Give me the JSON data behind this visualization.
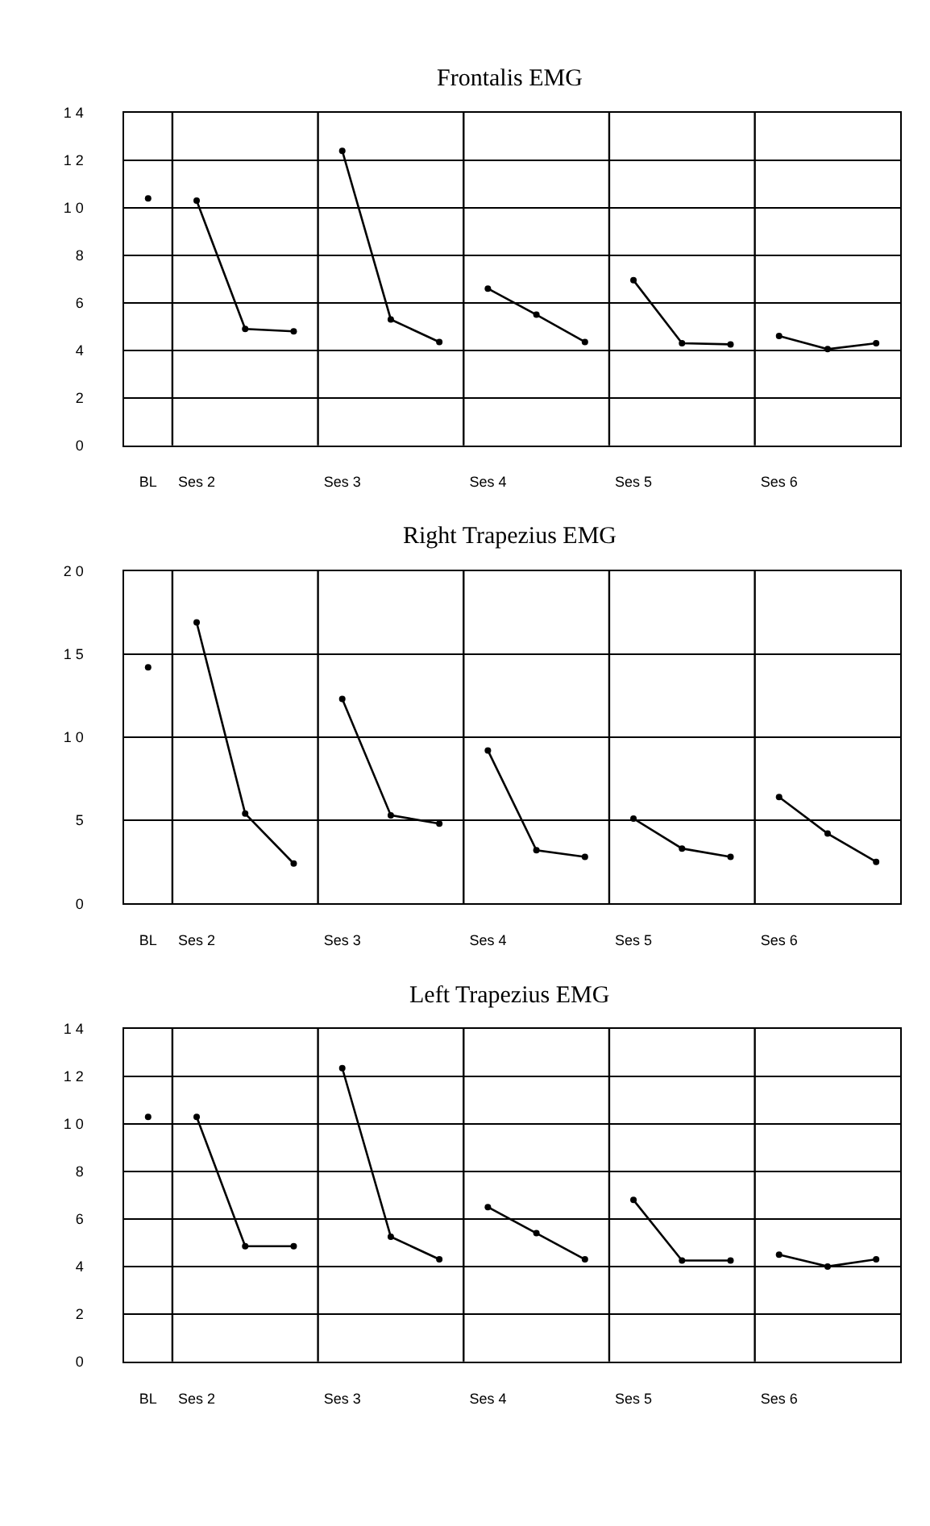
{
  "chart_data": [
    {
      "type": "line",
      "title": "Frontalis EMG",
      "categories": [
        "BL",
        "Ses 2",
        null,
        null,
        "Ses 3",
        null,
        null,
        "Ses 4",
        null,
        null,
        "Ses 5",
        null,
        null,
        "Ses 6",
        null,
        null
      ],
      "series": [
        {
          "color": "#000000",
          "values": [
            10.4,
            null,
            null,
            null,
            null,
            null,
            null,
            null,
            null,
            null,
            null,
            null,
            null,
            null,
            null,
            null
          ]
        },
        {
          "color": "#000000",
          "values": [
            null,
            10.3,
            4.9,
            4.8,
            null,
            null,
            null,
            null,
            null,
            null,
            null,
            null,
            null,
            null,
            null,
            null
          ]
        },
        {
          "color": "#000000",
          "values": [
            null,
            null,
            null,
            null,
            12.4,
            5.3,
            4.35,
            null,
            null,
            null,
            null,
            null,
            null,
            null,
            null,
            null
          ]
        },
        {
          "color": "#000000",
          "values": [
            null,
            null,
            null,
            null,
            null,
            null,
            null,
            6.6,
            5.5,
            4.35,
            null,
            null,
            null,
            null,
            null,
            null
          ]
        },
        {
          "color": "#000000",
          "values": [
            null,
            null,
            null,
            null,
            null,
            null,
            null,
            null,
            null,
            null,
            6.95,
            4.3,
            4.25,
            null,
            null,
            null
          ]
        },
        {
          "color": "#000000",
          "values": [
            null,
            null,
            null,
            null,
            null,
            null,
            null,
            null,
            null,
            null,
            null,
            null,
            null,
            4.6,
            4.05,
            4.3
          ]
        }
      ],
      "ylim": [
        0,
        14
      ],
      "yticks": [
        0,
        2,
        4,
        6,
        8,
        {
          "value": 10,
          "label": "1 0"
        },
        {
          "value": 12,
          "label": "1 2"
        },
        {
          "value": 14,
          "label": "1 4"
        }
      ],
      "grid": true,
      "marker": "circle",
      "line_style": "solid"
    },
    {
      "type": "line",
      "title": "Right Trapezius EMG",
      "categories": [
        "BL",
        "Ses 2",
        null,
        null,
        "Ses 3",
        null,
        null,
        "Ses 4",
        null,
        null,
        "Ses 5",
        null,
        null,
        "Ses 6",
        null,
        null
      ],
      "series": [
        {
          "color": "#000000",
          "values": [
            14.2,
            null,
            null,
            null,
            null,
            null,
            null,
            null,
            null,
            null,
            null,
            null,
            null,
            null,
            null,
            null
          ]
        },
        {
          "color": "#000000",
          "values": [
            null,
            16.9,
            5.4,
            2.4,
            null,
            null,
            null,
            null,
            null,
            null,
            null,
            null,
            null,
            null,
            null,
            null
          ]
        },
        {
          "color": "#000000",
          "values": [
            null,
            null,
            null,
            null,
            12.3,
            5.3,
            4.8,
            null,
            null,
            null,
            null,
            null,
            null,
            null,
            null,
            null
          ]
        },
        {
          "color": "#000000",
          "values": [
            null,
            null,
            null,
            null,
            null,
            null,
            null,
            9.2,
            3.2,
            2.8,
            null,
            null,
            null,
            null,
            null,
            null
          ]
        },
        {
          "color": "#000000",
          "values": [
            null,
            null,
            null,
            null,
            null,
            null,
            null,
            null,
            null,
            null,
            5.1,
            3.3,
            2.8,
            null,
            null,
            null
          ]
        },
        {
          "color": "#000000",
          "values": [
            null,
            null,
            null,
            null,
            null,
            null,
            null,
            null,
            null,
            null,
            null,
            null,
            null,
            6.4,
            4.2,
            2.5
          ]
        }
      ],
      "ylim": [
        0,
        20
      ],
      "yticks": [
        0,
        5,
        {
          "value": 10,
          "label": "1 0"
        },
        {
          "value": 15,
          "label": "1 5"
        },
        {
          "value": 20,
          "label": "2 0"
        }
      ],
      "grid": true,
      "marker": "circle",
      "line_style": "solid"
    },
    {
      "type": "line",
      "title": "Left Trapezius EMG",
      "categories": [
        "BL",
        "Ses 2",
        null,
        null,
        "Ses 3",
        null,
        null,
        "Ses 4",
        null,
        null,
        "Ses 5",
        null,
        null,
        "Ses 6",
        null,
        null
      ],
      "series": [
        {
          "color": "#000000",
          "values": [
            10.3,
            null,
            null,
            null,
            null,
            null,
            null,
            null,
            null,
            null,
            null,
            null,
            null,
            null,
            null,
            null
          ]
        },
        {
          "color": "#000000",
          "values": [
            null,
            10.3,
            4.85,
            4.85,
            null,
            null,
            null,
            null,
            null,
            null,
            null,
            null,
            null,
            null,
            null,
            null
          ]
        },
        {
          "color": "#000000",
          "values": [
            null,
            null,
            null,
            null,
            12.35,
            5.25,
            4.3,
            null,
            null,
            null,
            null,
            null,
            null,
            null,
            null,
            null
          ]
        },
        {
          "color": "#000000",
          "values": [
            null,
            null,
            null,
            null,
            null,
            null,
            null,
            6.5,
            5.4,
            4.3,
            null,
            null,
            null,
            null,
            null,
            null
          ]
        },
        {
          "color": "#000000",
          "values": [
            null,
            null,
            null,
            null,
            null,
            null,
            null,
            null,
            null,
            null,
            6.8,
            4.25,
            4.25,
            null,
            null,
            null
          ]
        },
        {
          "color": "#000000",
          "values": [
            null,
            null,
            null,
            null,
            null,
            null,
            null,
            null,
            null,
            null,
            null,
            null,
            null,
            4.5,
            4.0,
            4.3
          ]
        }
      ],
      "ylim": [
        0,
        14
      ],
      "yticks": [
        0,
        2,
        4,
        6,
        8,
        {
          "value": 10,
          "label": "1 0"
        },
        {
          "value": 12,
          "label": "1 2"
        },
        {
          "value": 14,
          "label": "1 4"
        }
      ],
      "grid": true,
      "marker": "circle",
      "line_style": "solid"
    }
  ]
}
